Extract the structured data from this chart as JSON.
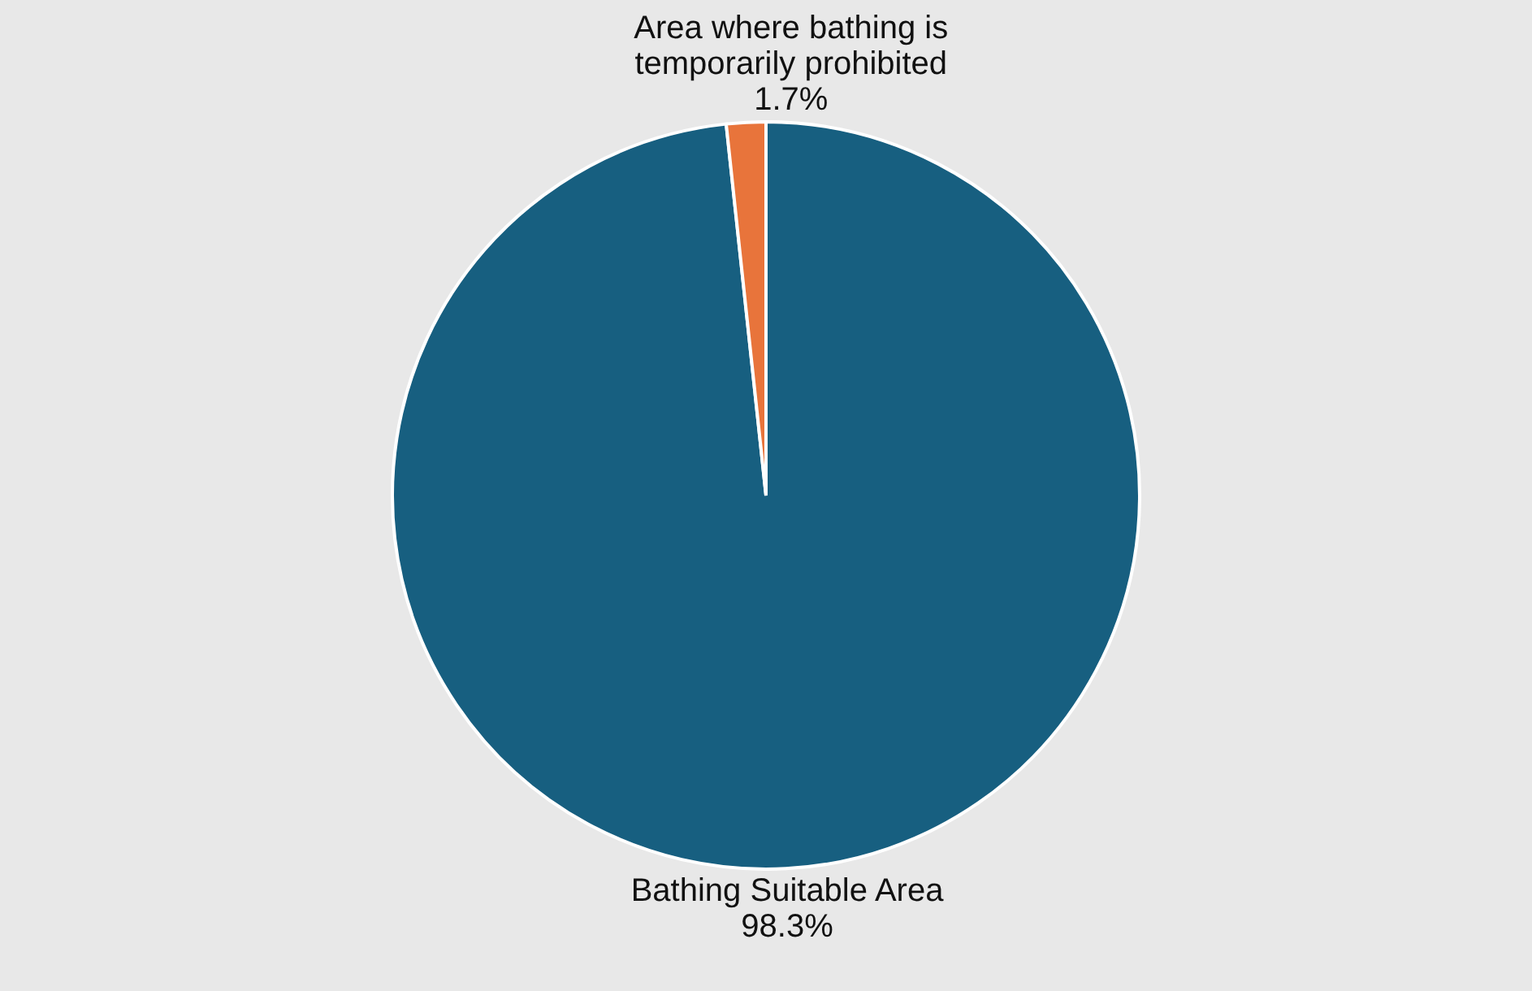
{
  "chart_data": {
    "type": "pie",
    "categories": [
      "Bathing Suitable Area",
      "Area where bathing is temporarily prohibited"
    ],
    "values": [
      98.3,
      1.7
    ],
    "value_labels": [
      "98.3%",
      "1.7%"
    ],
    "colors": [
      "#175f80",
      "#e8743b"
    ]
  }
}
